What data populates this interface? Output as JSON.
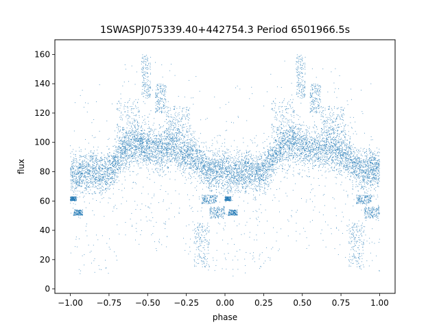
{
  "chart_data": {
    "type": "scatter",
    "title": "1SWASPJ075339.40+442754.3 Period 6501966.5s",
    "xlabel": "phase",
    "ylabel": "flux",
    "xlim": [
      -1.1,
      1.1
    ],
    "ylim": [
      -3,
      170
    ],
    "x_ticks": [
      -1.0,
      -0.75,
      -0.5,
      -0.25,
      0.0,
      0.25,
      0.5,
      0.75,
      1.0
    ],
    "x_tick_labels": [
      "−1.00",
      "−0.75",
      "−0.50",
      "−0.25",
      "0.00",
      "0.25",
      "0.50",
      "0.75",
      "1.00"
    ],
    "y_ticks": [
      0,
      20,
      40,
      60,
      80,
      100,
      120,
      140,
      160
    ],
    "y_tick_labels": [
      "0",
      "20",
      "40",
      "60",
      "80",
      "100",
      "120",
      "140",
      "160"
    ],
    "grid": false,
    "legend": "none",
    "point_color": "#1f77b4",
    "x_range": [
      -1.0,
      1.0
    ],
    "trend_points": [
      {
        "phase": 0.0,
        "flux": 80
      },
      {
        "phase": 0.05,
        "flux": 78
      },
      {
        "phase": 0.1,
        "flux": 80
      },
      {
        "phase": 0.15,
        "flux": 81
      },
      {
        "phase": 0.2,
        "flux": 79
      },
      {
        "phase": 0.25,
        "flux": 80
      },
      {
        "phase": 0.3,
        "flux": 88
      },
      {
        "phase": 0.35,
        "flux": 95
      },
      {
        "phase": 0.4,
        "flux": 98
      },
      {
        "phase": 0.45,
        "flux": 100
      },
      {
        "phase": 0.5,
        "flux": 97
      },
      {
        "phase": 0.55,
        "flux": 96
      },
      {
        "phase": 0.6,
        "flux": 95
      },
      {
        "phase": 0.65,
        "flux": 97
      },
      {
        "phase": 0.7,
        "flux": 95
      },
      {
        "phase": 0.75,
        "flux": 92
      },
      {
        "phase": 0.8,
        "flux": 90
      },
      {
        "phase": 0.85,
        "flux": 85
      },
      {
        "phase": 0.9,
        "flux": 80
      },
      {
        "phase": 0.95,
        "flux": 82
      },
      {
        "phase": 1.0,
        "flux": 82
      }
    ],
    "clusters": [
      {
        "phase_range": [
          0.0,
          0.04
        ],
        "flux_range": [
          60,
          63
        ]
      },
      {
        "phase_range": [
          0.02,
          0.08
        ],
        "flux_range": [
          50,
          54
        ]
      },
      {
        "phase_range": [
          0.3,
          0.45
        ],
        "flux_range": [
          100,
          130
        ]
      },
      {
        "phase_range": [
          0.46,
          0.52
        ],
        "flux_range": [
          130,
          160
        ]
      },
      {
        "phase_range": [
          0.55,
          0.62
        ],
        "flux_range": [
          120,
          140
        ]
      },
      {
        "phase_range": [
          0.62,
          0.78
        ],
        "flux_range": [
          105,
          125
        ]
      },
      {
        "phase_range": [
          0.8,
          0.9
        ],
        "flux_range": [
          15,
          45
        ]
      },
      {
        "phase_range": [
          0.85,
          0.95
        ],
        "flux_range": [
          58,
          64
        ]
      },
      {
        "phase_range": [
          0.9,
          1.0
        ],
        "flux_range": [
          48,
          56
        ]
      }
    ],
    "point_count": 9000
  }
}
